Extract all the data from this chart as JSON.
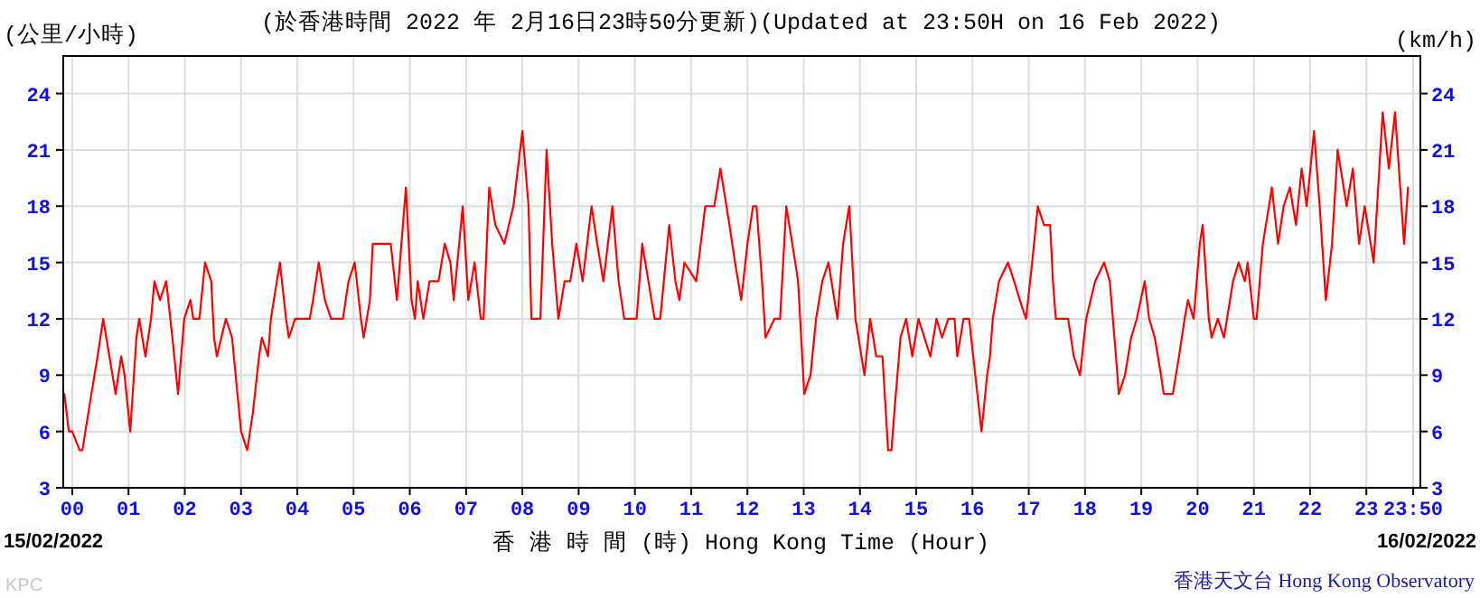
{
  "chart_data": {
    "type": "line",
    "title": "(於香港時間 2022 年 2月16日23時50分更新)(Updated at 23:50H on 16 Feb 2022)",
    "ylabel": "(公里/小時)",
    "y2label": "(km/h)",
    "xlabel": "香 港 時 間 (時) Hong Kong Time (Hour)",
    "annotations": [
      "15/02/2022",
      "16/02/2022",
      "香港天文台 Hong Kong Observatory",
      "KPC"
    ],
    "x": [
      -0.14,
      -0.06,
      0.0,
      0.13,
      0.18,
      0.34,
      0.45,
      0.55,
      0.66,
      0.77,
      0.87,
      0.93,
      1.03,
      1.14,
      1.19,
      1.3,
      1.4,
      1.46,
      1.56,
      1.67,
      1.78,
      1.88,
      1.99,
      2.1,
      2.15,
      2.26,
      2.36,
      2.47,
      2.52,
      2.57,
      2.73,
      2.84,
      3.0,
      3.11,
      3.21,
      3.32,
      3.37,
      3.48,
      3.53,
      3.69,
      3.8,
      3.85,
      3.96,
      4.22,
      4.28,
      4.38,
      4.49,
      4.6,
      4.81,
      4.91,
      5.02,
      5.13,
      5.18,
      5.29,
      5.34,
      5.66,
      5.77,
      5.93,
      6.03,
      6.09,
      6.14,
      6.24,
      6.35,
      6.51,
      6.62,
      6.72,
      6.78,
      6.94,
      7.04,
      7.15,
      7.26,
      7.31,
      7.41,
      7.52,
      7.68,
      7.84,
      8.0,
      8.11,
      8.16,
      8.32,
      8.43,
      8.53,
      8.64,
      8.75,
      8.85,
      8.96,
      9.07,
      9.23,
      9.33,
      9.44,
      9.6,
      9.71,
      9.81,
      10.03,
      10.13,
      10.24,
      10.35,
      10.45,
      10.61,
      10.72,
      10.79,
      10.88,
      11.09,
      11.25,
      11.41,
      11.52,
      11.68,
      11.78,
      11.89,
      12.0,
      12.1,
      12.16,
      12.26,
      12.32,
      12.48,
      12.58,
      12.69,
      12.85,
      12.9,
      13.01,
      13.12,
      13.22,
      13.33,
      13.44,
      13.6,
      13.7,
      13.81,
      13.92,
      14.08,
      14.18,
      14.29,
      14.4,
      14.5,
      14.56,
      14.61,
      14.72,
      14.82,
      14.93,
      15.04,
      15.25,
      15.36,
      15.46,
      15.57,
      15.68,
      15.73,
      15.84,
      15.94,
      16.05,
      16.16,
      16.26,
      16.31,
      16.36,
      16.47,
      16.63,
      16.74,
      16.84,
      16.95,
      17.06,
      17.16,
      17.27,
      17.38,
      17.43,
      17.48,
      17.7,
      17.8,
      17.91,
      18.02,
      18.18,
      18.34,
      18.44,
      18.55,
      18.6,
      18.71,
      18.82,
      18.92,
      19.06,
      19.14,
      19.24,
      19.35,
      19.4,
      19.56,
      19.67,
      19.77,
      19.83,
      19.93,
      20.04,
      20.09,
      20.2,
      20.25,
      20.36,
      20.47,
      20.63,
      20.73,
      20.84,
      20.89,
      21.0,
      21.05,
      21.16,
      21.27,
      21.32,
      21.43,
      21.53,
      21.64,
      21.75,
      21.85,
      21.94,
      22.07,
      22.17,
      22.28,
      22.39,
      22.49,
      22.65,
      22.76,
      22.87,
      22.97,
      23.13,
      23.29,
      23.4,
      23.51,
      23.67,
      23.74
    ],
    "series": [
      {
        "color": "#ff0000",
        "values": [
          8,
          6,
          6,
          5,
          5,
          8,
          10,
          12,
          10,
          8,
          10,
          9,
          6,
          11,
          12,
          10,
          12,
          14,
          13,
          14,
          11,
          8,
          12,
          13,
          12,
          12,
          15,
          14,
          11,
          10,
          12,
          11,
          6,
          5,
          7,
          10,
          11,
          10,
          12,
          15,
          12,
          11,
          12,
          12,
          13,
          15,
          13,
          12,
          12,
          14,
          15,
          12,
          11,
          13,
          16,
          16,
          13,
          19,
          13,
          12,
          14,
          12,
          14,
          14,
          16,
          15,
          13,
          18,
          13,
          15,
          12,
          12,
          19,
          17,
          16,
          18,
          22,
          18,
          12,
          12,
          21,
          16,
          12,
          14,
          14,
          16,
          14,
          18,
          16,
          14,
          18,
          14,
          12,
          12,
          16,
          14,
          12,
          12,
          17,
          14,
          13,
          15,
          14,
          18,
          18,
          20,
          17,
          15,
          13,
          16,
          18,
          18,
          14,
          11,
          12,
          12,
          18,
          15,
          14,
          8,
          9,
          12,
          14,
          15,
          12,
          16,
          18,
          12,
          9,
          12,
          10,
          10,
          5,
          5,
          7,
          11,
          12,
          10,
          12,
          10,
          12,
          11,
          12,
          12,
          10,
          12,
          12,
          9,
          6,
          9,
          10,
          12,
          14,
          15,
          14,
          13,
          12,
          15,
          18,
          17,
          17,
          14,
          12,
          12,
          10,
          9,
          12,
          14,
          15,
          14,
          10,
          8,
          9,
          11,
          12,
          14,
          12,
          11,
          9,
          8,
          8,
          10,
          12,
          13,
          12,
          16,
          17,
          12,
          11,
          12,
          11,
          14,
          15,
          14,
          15,
          12,
          12,
          16,
          18,
          19,
          16,
          18,
          19,
          17,
          20,
          18,
          22,
          18,
          13,
          16,
          21,
          18,
          20,
          16,
          18,
          15,
          23,
          20,
          23,
          16,
          19
        ]
      }
    ],
    "xlim": [
      -0.16,
      23.96
    ],
    "xticks": [
      {
        "value": 0,
        "label": "00"
      },
      {
        "value": 1,
        "label": "01"
      },
      {
        "value": 2,
        "label": "02"
      },
      {
        "value": 3,
        "label": "03"
      },
      {
        "value": 4,
        "label": "04"
      },
      {
        "value": 5,
        "label": "05"
      },
      {
        "value": 6,
        "label": "06"
      },
      {
        "value": 7,
        "label": "07"
      },
      {
        "value": 8,
        "label": "08"
      },
      {
        "value": 9,
        "label": "09"
      },
      {
        "value": 10,
        "label": "10"
      },
      {
        "value": 11,
        "label": "11"
      },
      {
        "value": 12,
        "label": "12"
      },
      {
        "value": 13,
        "label": "13"
      },
      {
        "value": 14,
        "label": "14"
      },
      {
        "value": 15,
        "label": "15"
      },
      {
        "value": 16,
        "label": "16"
      },
      {
        "value": 17,
        "label": "17"
      },
      {
        "value": 18,
        "label": "18"
      },
      {
        "value": 19,
        "label": "19"
      },
      {
        "value": 20,
        "label": "20"
      },
      {
        "value": 21,
        "label": "21"
      },
      {
        "value": 22,
        "label": "22"
      },
      {
        "value": 23,
        "label": "23"
      },
      {
        "value": 23.833,
        "label": "23:50"
      }
    ],
    "ylim": [
      3,
      26
    ],
    "yticks": [
      3,
      6,
      9,
      12,
      15,
      18,
      21,
      24
    ],
    "y2lim": [
      3,
      26
    ],
    "y2ticks": [
      3,
      6,
      9,
      12,
      15,
      18,
      21,
      24
    ],
    "grid": true
  }
}
